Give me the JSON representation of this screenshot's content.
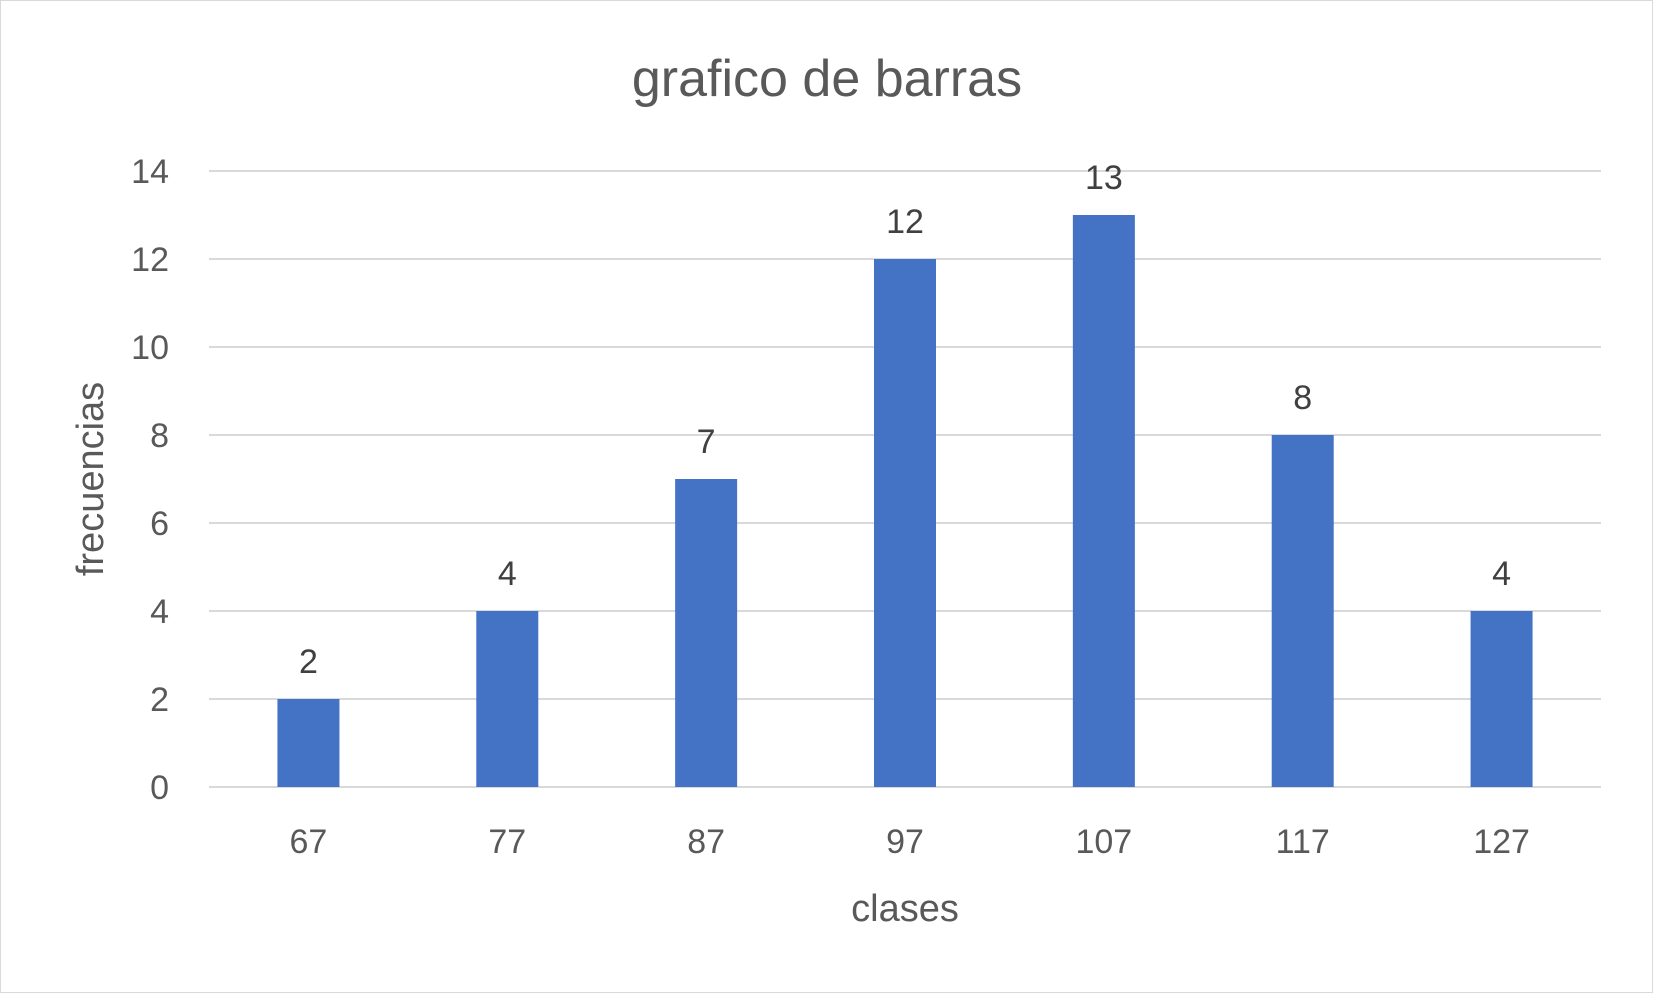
{
  "chart_data": {
    "type": "bar",
    "title": "grafico de barras",
    "xlabel": "clases",
    "ylabel": "frecuencias",
    "categories": [
      "67",
      "77",
      "87",
      "97",
      "107",
      "117",
      "127"
    ],
    "values": [
      2,
      4,
      7,
      12,
      13,
      8,
      4
    ],
    "ylim": [
      0,
      14
    ],
    "yticks": [
      0,
      2,
      4,
      6,
      8,
      10,
      12,
      14
    ],
    "grid": true,
    "legend": "none",
    "data_labels": true,
    "bar_color": "#4472C4"
  }
}
